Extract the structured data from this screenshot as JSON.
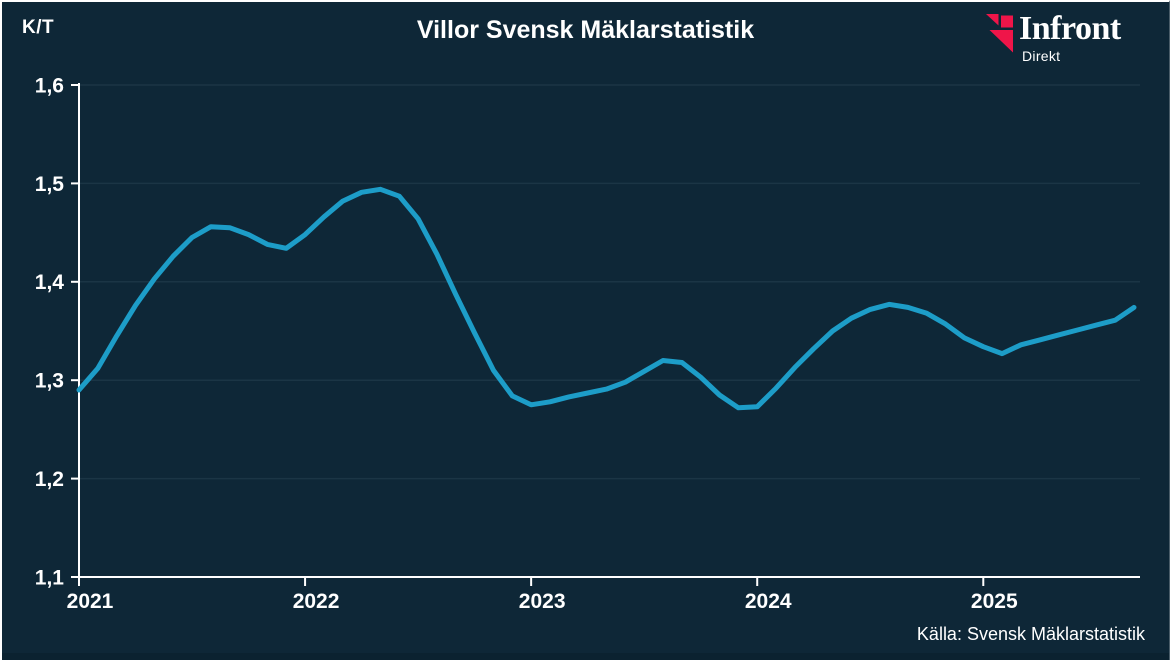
{
  "header": {
    "unit_label": "K/T",
    "title": "Villor Svensk Mäklarstatistik",
    "logo": {
      "name": "Infront",
      "sub": "Direkt",
      "mark_color": "#ef1549"
    }
  },
  "footer": {
    "source": "Källa: Svensk Mäklarstatistik"
  },
  "colors": {
    "background": "#0e2737",
    "line": "#1d9dc8",
    "grid": "#1b3545",
    "axis": "#ffffff",
    "text": "#ffffff",
    "logo_red": "#ef1549"
  },
  "chart_data": {
    "type": "line",
    "title": "Villor Svensk Mäklarstatistik",
    "ylabel": "K/T",
    "xlabel": "",
    "ylim": [
      1.1,
      1.6
    ],
    "yticks": [
      1.1,
      1.2,
      1.3,
      1.4,
      1.5,
      1.6
    ],
    "ytick_labels": [
      "1,1",
      "1,2",
      "1,3",
      "1,4",
      "1,5",
      "1,6"
    ],
    "xtick_labels": [
      "2021",
      "2022",
      "2023",
      "2024",
      "2025"
    ],
    "frequency": "monthly",
    "start": "2021-01",
    "end": "2025-09",
    "grid": "horizontal-only",
    "legend_position": "none",
    "line_color": "#1d9dc8",
    "source": "Källa: Svensk Mäklarstatistik",
    "series": [
      {
        "name": "K/T Villor",
        "values": [
          1.29,
          1.312,
          1.345,
          1.376,
          1.403,
          1.426,
          1.445,
          1.456,
          1.455,
          1.448,
          1.438,
          1.434,
          1.448,
          1.466,
          1.482,
          1.491,
          1.494,
          1.487,
          1.464,
          1.428,
          1.387,
          1.348,
          1.31,
          1.284,
          1.275,
          1.278,
          1.283,
          1.287,
          1.291,
          1.298,
          1.309,
          1.32,
          1.318,
          1.303,
          1.285,
          1.272,
          1.273,
          1.292,
          1.313,
          1.332,
          1.35,
          1.363,
          1.372,
          1.377,
          1.374,
          1.368,
          1.357,
          1.343,
          1.334,
          1.327,
          1.336,
          1.341,
          1.346,
          1.351,
          1.356,
          1.361,
          1.374
        ]
      }
    ]
  }
}
